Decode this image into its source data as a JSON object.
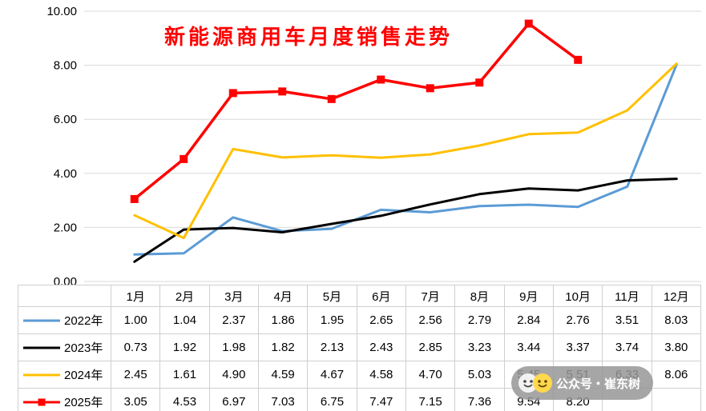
{
  "title": "新能源商用车月度销售走势",
  "watermark": {
    "text": "公众号・崔东树"
  },
  "chart_data": {
    "type": "line",
    "title": "新能源商用车月度销售走势",
    "categories": [
      "1月",
      "2月",
      "3月",
      "4月",
      "5月",
      "6月",
      "7月",
      "8月",
      "9月",
      "10月",
      "11月",
      "12月"
    ],
    "ylim": [
      0,
      10
    ],
    "grid": true,
    "legend_position": "table-left-column",
    "yticks": [
      {
        "value": 0,
        "label": "0.00"
      },
      {
        "value": 2,
        "label": "2.00"
      },
      {
        "value": 4,
        "label": "4.00"
      },
      {
        "value": 6,
        "label": "6.00"
      },
      {
        "value": 8,
        "label": "8.00"
      },
      {
        "value": 10,
        "label": "10.00"
      }
    ],
    "series": [
      {
        "name": "2022年",
        "color": "#5B9BD5",
        "marker": "none",
        "values": [
          1.0,
          1.04,
          2.37,
          1.86,
          1.95,
          2.65,
          2.56,
          2.79,
          2.84,
          2.76,
          3.51,
          8.03
        ]
      },
      {
        "name": "2023年",
        "color": "#000000",
        "marker": "none",
        "values": [
          0.73,
          1.92,
          1.98,
          1.82,
          2.13,
          2.43,
          2.85,
          3.23,
          3.44,
          3.37,
          3.74,
          3.8
        ]
      },
      {
        "name": "2024年",
        "color": "#FFC000",
        "marker": "none",
        "values": [
          2.45,
          1.61,
          4.9,
          4.59,
          4.67,
          4.58,
          4.7,
          5.03,
          5.45,
          5.51,
          6.33,
          8.06
        ]
      },
      {
        "name": "2025年",
        "color": "#FF0000",
        "marker": "square",
        "values": [
          3.05,
          4.53,
          6.97,
          7.03,
          6.75,
          7.47,
          7.15,
          7.36,
          9.54,
          8.2,
          null,
          null
        ]
      }
    ]
  }
}
